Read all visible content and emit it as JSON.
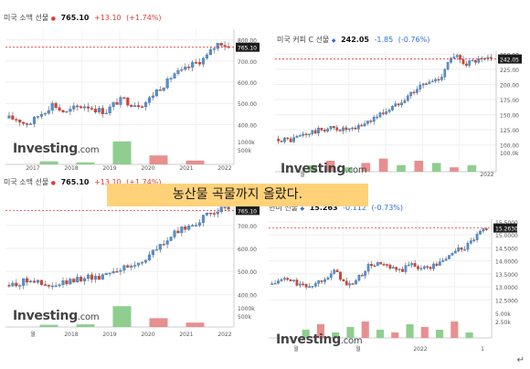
{
  "banner_text": "농산물 곡물까지 올랐다.",
  "enter_glyph": "↵",
  "brand": {
    "name": "Investing",
    "suffix": ".com"
  },
  "chart_data": [
    {
      "type": "candlestick",
      "header": {
        "name": "미국 소맥 선물",
        "dot_color": "#e53935",
        "price": "765.10",
        "change": "+13.10",
        "change_pct": "(+1.74%)",
        "direction": "up"
      },
      "price_tag": "765.10",
      "ylim": [
        350,
        850
      ],
      "yticks": [
        "800.00",
        "700.00",
        "600.00",
        "500.00",
        "400.00"
      ],
      "ytick_values": [
        800,
        700,
        600,
        500,
        400
      ],
      "volume_ticks": [
        "1000k",
        "500k"
      ],
      "xlabels": [
        "2017",
        "2018",
        "2019",
        "2020",
        "2021",
        "2022"
      ],
      "last_price": 765.1,
      "path": [
        [
          0,
          430
        ],
        [
          0.04,
          425
        ],
        [
          0.07,
          405
        ],
        [
          0.1,
          410
        ],
        [
          0.13,
          440
        ],
        [
          0.17,
          470
        ],
        [
          0.2,
          500
        ],
        [
          0.23,
          470
        ],
        [
          0.26,
          455
        ],
        [
          0.3,
          480
        ],
        [
          0.35,
          490
        ],
        [
          0.4,
          470
        ],
        [
          0.44,
          460
        ],
        [
          0.48,
          500
        ],
        [
          0.52,
          520
        ],
        [
          0.55,
          500
        ],
        [
          0.6,
          495
        ],
        [
          0.63,
          510
        ],
        [
          0.67,
          560
        ],
        [
          0.72,
          600
        ],
        [
          0.75,
          640
        ],
        [
          0.79,
          650
        ],
        [
          0.83,
          680
        ],
        [
          0.87,
          700
        ],
        [
          0.9,
          720
        ],
        [
          0.93,
          760
        ],
        [
          0.96,
          790
        ],
        [
          1,
          765
        ]
      ],
      "volume_bars": [
        0.12,
        0.08,
        0.9,
        0.35,
        0.15
      ],
      "volume_colors": [
        "#8fce8f",
        "#8fce8f",
        "#8fce8f",
        "#e88f8f",
        "#e88f8f"
      ]
    },
    {
      "type": "candlestick",
      "header": {
        "name": "미국 커피 C 선물",
        "dot_color": "#2f6fd6",
        "price": "242.05",
        "change": "-1.85",
        "change_pct": "(-0.76%)",
        "direction": "down"
      },
      "price_tag": "242.05",
      "ylim": [
        95,
        255
      ],
      "yticks": [
        "250.00",
        "225.00",
        "200.00",
        "175.00",
        "150.00",
        "125.00",
        "100.00"
      ],
      "ytick_values": [
        250,
        225,
        200,
        175,
        150,
        125,
        100
      ],
      "volume_ticks": [
        "100.0k"
      ],
      "xlabels": [
        "월",
        "2022"
      ],
      "last_price": 242.05,
      "path": [
        [
          0,
          110
        ],
        [
          0.06,
          108
        ],
        [
          0.1,
          115
        ],
        [
          0.15,
          120
        ],
        [
          0.2,
          125
        ],
        [
          0.25,
          128
        ],
        [
          0.3,
          126
        ],
        [
          0.35,
          124
        ],
        [
          0.4,
          135
        ],
        [
          0.45,
          145
        ],
        [
          0.5,
          155
        ],
        [
          0.55,
          165
        ],
        [
          0.6,
          180
        ],
        [
          0.64,
          190
        ],
        [
          0.68,
          200
        ],
        [
          0.72,
          205
        ],
        [
          0.76,
          210
        ],
        [
          0.8,
          240
        ],
        [
          0.84,
          245
        ],
        [
          0.88,
          235
        ],
        [
          0.92,
          238
        ],
        [
          0.96,
          240
        ],
        [
          1,
          242
        ]
      ],
      "volume_bars": [
        0.3,
        0.5,
        0.2,
        0.4,
        0.6,
        0.3,
        0.5,
        0.4,
        0.2,
        0.3
      ],
      "volume_colors": [
        "#8fce8f",
        "#e88f8f",
        "#8fce8f",
        "#e88f8f",
        "#e88f8f",
        "#8fce8f",
        "#e88f8f",
        "#8fce8f",
        "#e88f8f",
        "#8fce8f"
      ]
    },
    {
      "type": "candlestick",
      "header": {
        "name": "미국 소맥 선물",
        "dot_color": "#e53935",
        "price": "765.10",
        "change": "+13.10",
        "change_pct": "(+1.74%)",
        "direction": "up"
      },
      "price_tag": "765.10",
      "ylim": [
        370,
        830
      ],
      "yticks": [
        "700.00",
        "600.00",
        "500.00",
        "400.00"
      ],
      "ytick_values": [
        700,
        600,
        500,
        400
      ],
      "volume_ticks": [
        "1000k",
        "500k"
      ],
      "xlabels": [
        "월",
        "2018",
        "2019",
        "2020",
        "2021",
        "2022"
      ],
      "last_price": 765.1,
      "path": [
        [
          0,
          440
        ],
        [
          0.05,
          450
        ],
        [
          0.1,
          470
        ],
        [
          0.15,
          440
        ],
        [
          0.2,
          430
        ],
        [
          0.25,
          450
        ],
        [
          0.3,
          460
        ],
        [
          0.35,
          480
        ],
        [
          0.4,
          470
        ],
        [
          0.45,
          500
        ],
        [
          0.5,
          510
        ],
        [
          0.55,
          520
        ],
        [
          0.6,
          540
        ],
        [
          0.65,
          580
        ],
        [
          0.7,
          620
        ],
        [
          0.75,
          660
        ],
        [
          0.8,
          690
        ],
        [
          0.85,
          710
        ],
        [
          0.9,
          740
        ],
        [
          0.95,
          770
        ],
        [
          1,
          765
        ]
      ],
      "volume_bars": [
        0.1,
        0.12,
        0.95,
        0.4,
        0.2
      ],
      "volume_colors": [
        "#8fce8f",
        "#8fce8f",
        "#8fce8f",
        "#e88f8f",
        "#e88f8f"
      ]
    },
    {
      "type": "candlestick",
      "header": {
        "name": "현미 선물",
        "dot_color": "#2f6fd6",
        "price": "15.263",
        "change": "-0.112",
        "change_pct": "(-0.73%)",
        "direction": "down"
      },
      "price_tag": "15.2630",
      "ylim": [
        12.3,
        15.6
      ],
      "yticks": [
        "15.5000",
        "15.0000",
        "14.5000",
        "14.0000",
        "13.5000",
        "13.0000",
        "12.5000"
      ],
      "ytick_values": [
        15.5,
        15.0,
        14.5,
        14.0,
        13.5,
        13.0,
        12.5
      ],
      "volume_ticks": [
        "5.00k",
        "2.50k"
      ],
      "xlabels": [
        "월",
        "월",
        "2022",
        "1"
      ],
      "last_price": 15.263,
      "path": [
        [
          0,
          13.1
        ],
        [
          0.05,
          13.3
        ],
        [
          0.1,
          13.2
        ],
        [
          0.15,
          13.0
        ],
        [
          0.2,
          13.1
        ],
        [
          0.25,
          13.4
        ],
        [
          0.3,
          13.6
        ],
        [
          0.35,
          13.0
        ],
        [
          0.4,
          13.3
        ],
        [
          0.45,
          13.8
        ],
        [
          0.5,
          13.9
        ],
        [
          0.55,
          13.7
        ],
        [
          0.6,
          13.6
        ],
        [
          0.65,
          13.9
        ],
        [
          0.7,
          13.7
        ],
        [
          0.75,
          13.8
        ],
        [
          0.8,
          14.0
        ],
        [
          0.85,
          14.4
        ],
        [
          0.9,
          14.5
        ],
        [
          0.95,
          14.9
        ],
        [
          1,
          15.26
        ]
      ],
      "volume_bars": [
        0.3,
        0.5,
        0.2,
        0.4,
        0.6,
        0.3,
        0.2,
        0.5,
        0.4,
        0.3,
        0.6,
        0.2
      ],
      "volume_colors": [
        "#8fce8f",
        "#e88f8f",
        "#8fce8f",
        "#8fce8f",
        "#e88f8f",
        "#8fce8f",
        "#e88f8f",
        "#8fce8f",
        "#e88f8f",
        "#8fce8f",
        "#e88f8f",
        "#8fce8f"
      ]
    }
  ]
}
